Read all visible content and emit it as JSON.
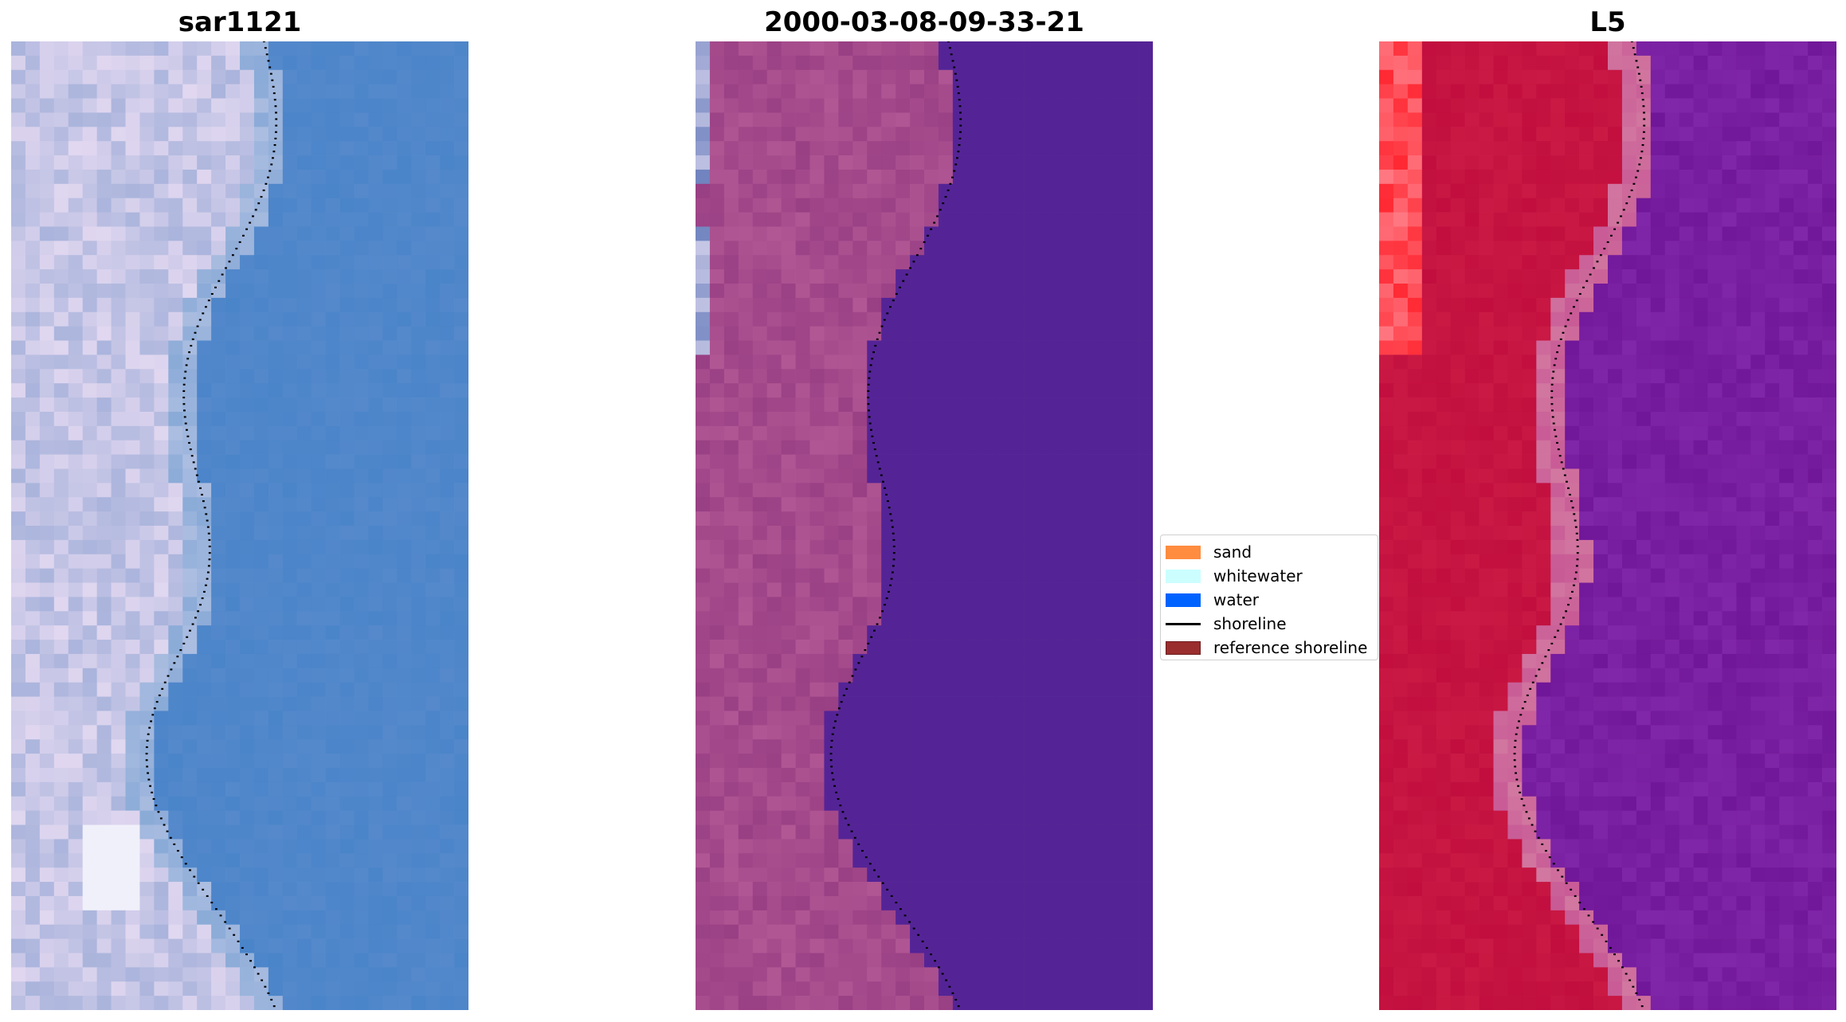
{
  "panels": [
    {
      "title": "sar1121",
      "palette": "rgb"
    },
    {
      "title": "2000-03-08-09-33-21",
      "palette": "classified"
    },
    {
      "title": "L5",
      "palette": "ndwi"
    }
  ],
  "legend": {
    "items": [
      {
        "label": "sand",
        "color": "#ff8c3f",
        "kind": "patch"
      },
      {
        "label": "whitewater",
        "color": "#ccfeff",
        "kind": "patch"
      },
      {
        "label": "water",
        "color": "#0063ff",
        "kind": "patch"
      },
      {
        "label": "shoreline",
        "color": "#000000",
        "kind": "line"
      },
      {
        "label": "reference shoreline",
        "color": "#9a2d2d",
        "kind": "patch"
      }
    ]
  }
}
